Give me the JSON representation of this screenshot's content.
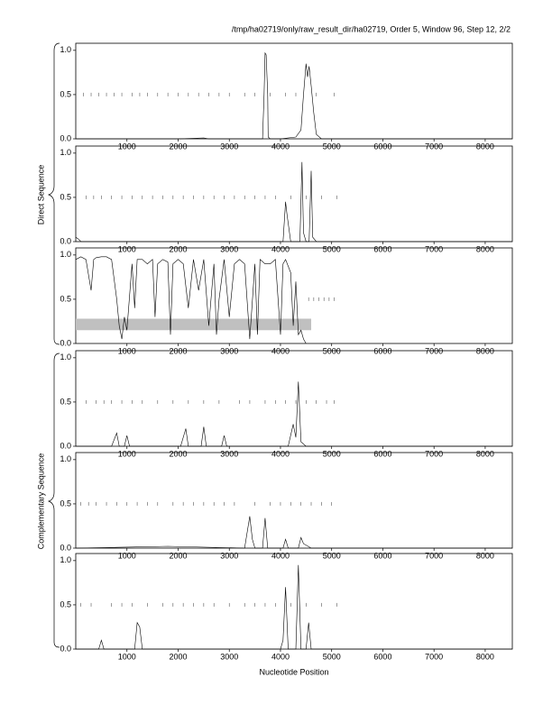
{
  "header": "/tmp/ha02719/only/raw_result_dir/ha02719, Order 5, Window 96, Step 12, 2/2",
  "group_labels": [
    "Direct Sequence",
    "Complementary Sequence"
  ],
  "xlabel": "Nucleotide Position",
  "chart_data": [
    {
      "type": "line",
      "xlim": [
        0,
        8530
      ],
      "ylim": [
        0,
        1.08
      ],
      "xticks": [
        1000,
        2000,
        3000,
        4000,
        5000,
        6000,
        7000,
        8000
      ],
      "yticks": [
        {
          "value": 0,
          "label": "0.0"
        },
        {
          "value": 0.5,
          "label": "0.5"
        },
        {
          "value": 1,
          "label": "1.0"
        }
      ],
      "x": [
        0,
        500,
        1000,
        2000,
        2500,
        2600,
        3000,
        3500,
        3650,
        3680,
        3700,
        3720,
        3750,
        3760,
        3800,
        4000,
        4300,
        4400,
        4450,
        4500,
        4530,
        4560,
        4600,
        4650,
        4700,
        4800,
        5000,
        8530
      ],
      "values": [
        0,
        0,
        0,
        0,
        0.01,
        0,
        0,
        0,
        0,
        0.5,
        0.97,
        0.95,
        0.5,
        0.02,
        0,
        0,
        0.02,
        0.1,
        0.5,
        0.85,
        0.7,
        0.82,
        0.6,
        0.3,
        0.05,
        0,
        0,
        0
      ],
      "marker_level": 0.5,
      "markers": [
        150,
        300,
        450,
        600,
        750,
        900,
        1100,
        1250,
        1400,
        1600,
        1800,
        2000,
        2200,
        2400,
        2600,
        2800,
        3000,
        3300,
        3500,
        3800,
        4100,
        4300,
        4700,
        5050
      ]
    },
    {
      "type": "line",
      "xlim": [
        0,
        8530
      ],
      "ylim": [
        0,
        1.08
      ],
      "xticks": [
        1000,
        2000,
        3000,
        4000,
        5000,
        6000,
        7000,
        8000
      ],
      "yticks": [
        {
          "value": 0,
          "label": "0.0"
        },
        {
          "value": 0.5,
          "label": "0.5"
        },
        {
          "value": 1,
          "label": "1.0"
        }
      ],
      "x": [
        0,
        50,
        100,
        200,
        1000,
        3000,
        4050,
        4100,
        4130,
        4200,
        4380,
        4420,
        4450,
        4500,
        4560,
        4600,
        4630,
        4700,
        8530
      ],
      "values": [
        0.05,
        0.03,
        0,
        0,
        0,
        0,
        0,
        0.45,
        0.3,
        0,
        0,
        0.9,
        0.1,
        0,
        0,
        0.8,
        0.05,
        0,
        0
      ],
      "marker_level": 0.5,
      "markers": [
        200,
        350,
        500,
        700,
        900,
        1100,
        1300,
        1500,
        1700,
        1900,
        2100,
        2300,
        2500,
        2700,
        2900,
        3100,
        3300,
        3500,
        3700,
        3900,
        4200,
        4500,
        4800,
        5100
      ]
    },
    {
      "type": "line",
      "xlim": [
        0,
        8530
      ],
      "ylim": [
        0,
        1.08
      ],
      "xticks": [
        1000,
        2000,
        3000,
        4000,
        5000,
        6000,
        7000,
        8000
      ],
      "yticks": [
        {
          "value": 0,
          "label": "0.0"
        },
        {
          "value": 0.5,
          "label": "0.5"
        },
        {
          "value": 1,
          "label": "1.0"
        }
      ],
      "x": [
        0,
        100,
        200,
        300,
        350,
        400,
        500,
        600,
        700,
        800,
        850,
        900,
        950,
        1000,
        1100,
        1150,
        1200,
        1300,
        1400,
        1500,
        1550,
        1600,
        1700,
        1800,
        1850,
        1900,
        2000,
        2100,
        2200,
        2300,
        2400,
        2500,
        2600,
        2700,
        2750,
        2800,
        2900,
        3000,
        3100,
        3200,
        3300,
        3400,
        3500,
        3550,
        3600,
        3700,
        3800,
        3900,
        4000,
        4050,
        4100,
        4200,
        4250,
        4300,
        4350,
        4400,
        4450,
        4500
      ],
      "values": [
        0.95,
        0.98,
        0.95,
        0.6,
        0.95,
        0.97,
        0.98,
        0.98,
        0.95,
        0.5,
        0.2,
        0.05,
        0.3,
        0.15,
        0.9,
        0.4,
        0.95,
        0.95,
        0.9,
        0.95,
        0.3,
        0.9,
        0.95,
        0.92,
        0.1,
        0.9,
        0.95,
        0.9,
        0.4,
        0.95,
        0.6,
        0.95,
        0.2,
        0.9,
        0.1,
        0.5,
        0.95,
        0.3,
        0.9,
        0.95,
        0.9,
        0.05,
        0.9,
        0.1,
        0.95,
        0.9,
        0.9,
        0.95,
        0.1,
        0.9,
        0.95,
        0.8,
        0.2,
        0.7,
        0.1,
        0.15,
        0.05,
        0
      ],
      "band": {
        "x": [
          0,
          4600
        ],
        "y": [
          0.15,
          0.28
        ],
        "color": "#c0c0c0"
      },
      "marker_level": 0.5,
      "markers": [
        4550,
        4650,
        4750,
        4850,
        4950,
        5050
      ]
    },
    {
      "type": "line",
      "xlim": [
        0,
        8530
      ],
      "ylim": [
        0,
        1.08
      ],
      "xticks": [
        1000,
        2000,
        3000,
        4000,
        5000,
        6000,
        7000,
        8000
      ],
      "yticks": [
        {
          "value": 0,
          "label": "0.0"
        },
        {
          "value": 0.5,
          "label": "0.5"
        },
        {
          "value": 1,
          "label": "1.0"
        }
      ],
      "x": [
        0,
        700,
        800,
        850,
        950,
        1000,
        1050,
        2050,
        2150,
        2200,
        2450,
        2500,
        2550,
        2850,
        2900,
        2950,
        4150,
        4250,
        4300,
        4350,
        4400,
        4500,
        8530
      ],
      "values": [
        0,
        0,
        0.15,
        0,
        0,
        0.12,
        0,
        0,
        0.2,
        0,
        0,
        0.22,
        0,
        0,
        0.12,
        0,
        0,
        0.25,
        0.1,
        0.73,
        0.05,
        0,
        0
      ],
      "marker_level": 0.5,
      "markers": [
        200,
        400,
        550,
        700,
        900,
        1100,
        1300,
        1600,
        1900,
        2200,
        2500,
        2800,
        3200,
        3400,
        3700,
        3900,
        4100,
        4300,
        4500,
        4700,
        4900,
        5050
      ]
    },
    {
      "type": "line",
      "xlim": [
        0,
        8530
      ],
      "ylim": [
        0,
        1.08
      ],
      "xticks": [
        1000,
        2000,
        3000,
        4000,
        5000,
        6000,
        7000,
        8000
      ],
      "yticks": [
        {
          "value": 0,
          "label": "0.0"
        },
        {
          "value": 0.5,
          "label": "0.5"
        },
        {
          "value": 1,
          "label": "1.0"
        }
      ],
      "x": [
        0,
        1800,
        3300,
        3400,
        3450,
        3500,
        3650,
        3700,
        3750,
        4050,
        4100,
        4150,
        4350,
        4400,
        4450,
        4600,
        8530
      ],
      "values": [
        0,
        0.02,
        0,
        0.36,
        0.1,
        0,
        0,
        0.34,
        0,
        0,
        0.1,
        0,
        0,
        0.12,
        0.05,
        0,
        0
      ],
      "marker_level": 0.5,
      "markers": [
        100,
        250,
        400,
        600,
        800,
        1000,
        1200,
        1400,
        1600,
        1900,
        2100,
        2300,
        2500,
        2700,
        2900,
        3100,
        3500,
        3800,
        4000,
        4200,
        4400,
        4600,
        4800,
        5000
      ]
    },
    {
      "type": "line",
      "xlim": [
        0,
        8530
      ],
      "ylim": [
        0,
        1.08
      ],
      "xticks": [
        1000,
        2000,
        3000,
        4000,
        5000,
        6000,
        7000,
        8000
      ],
      "yticks": [
        {
          "value": 0,
          "label": "0.0"
        },
        {
          "value": 0.5,
          "label": "0.5"
        },
        {
          "value": 1,
          "label": "1.0"
        }
      ],
      "x": [
        0,
        450,
        500,
        550,
        1150,
        1200,
        1250,
        1300,
        4000,
        4050,
        4100,
        4150,
        4300,
        4350,
        4400,
        4500,
        4550,
        4600,
        8530
      ],
      "values": [
        0,
        0,
        0.1,
        0,
        0,
        0.3,
        0.25,
        0,
        0,
        0.1,
        0.7,
        0,
        0,
        0.95,
        0,
        0,
        0.3,
        0,
        0
      ],
      "marker_level": 0.5,
      "markers": [
        100,
        300,
        700,
        900,
        1100,
        1400,
        1700,
        1900,
        2100,
        2300,
        2500,
        2700,
        3000,
        3300,
        3500,
        3700,
        3900,
        4200,
        4500,
        4800,
        5100
      ]
    }
  ]
}
